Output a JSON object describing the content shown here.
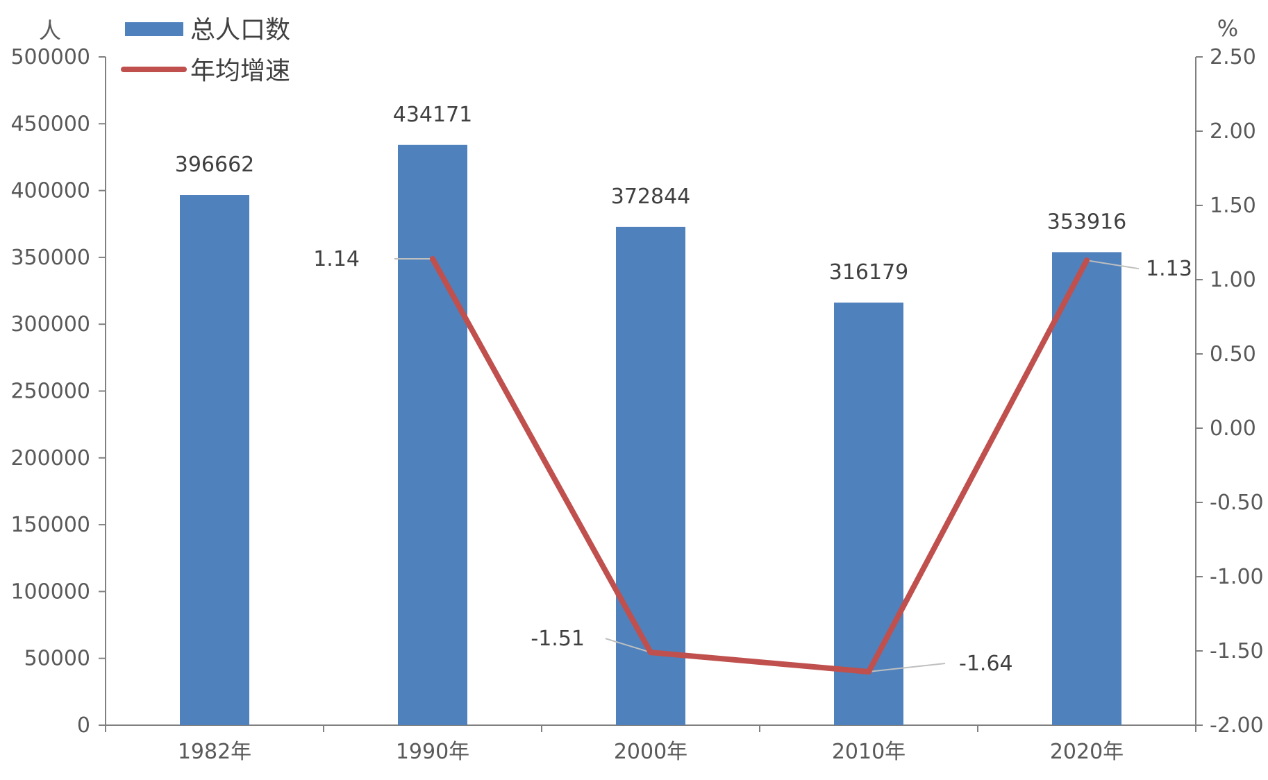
{
  "chart_data": {
    "type": "bar",
    "categories": [
      "1982年",
      "1990年",
      "2000年",
      "2010年",
      "2020年"
    ],
    "series": [
      {
        "name": "总人口数",
        "type": "bar",
        "axis": "left",
        "values": [
          396662,
          434171,
          372844,
          316179,
          353916
        ],
        "labels": [
          "396662",
          "434171",
          "372844",
          "316179",
          "353916"
        ],
        "color": "#4F81BD"
      },
      {
        "name": "年均增速",
        "type": "line",
        "axis": "right",
        "values": [
          null,
          1.14,
          -1.51,
          -1.64,
          1.13
        ],
        "labels": [
          "",
          "1.14",
          "-1.51",
          "-1.64",
          "1.13"
        ],
        "color": "#C0504D"
      }
    ],
    "y_left": {
      "unit": "人",
      "min": 0,
      "max": 500000,
      "ticks": [
        0,
        50000,
        100000,
        150000,
        200000,
        250000,
        300000,
        350000,
        400000,
        450000,
        500000
      ],
      "tick_labels": [
        "0",
        "50000",
        "100000",
        "150000",
        "200000",
        "250000",
        "300000",
        "350000",
        "400000",
        "450000",
        "500000"
      ]
    },
    "y_right": {
      "unit": "%",
      "min": -2.0,
      "max": 2.5,
      "ticks": [
        -2.0,
        -1.5,
        -1.0,
        -0.5,
        0.0,
        0.5,
        1.0,
        1.5,
        2.0,
        2.5
      ],
      "tick_labels": [
        "-2.00",
        "-1.50",
        "-1.00",
        "-0.50",
        "0.00",
        "0.50",
        "1.00",
        "1.50",
        "2.00",
        "2.50"
      ]
    },
    "legend": {
      "position": "top-left",
      "entries": [
        "总人口数",
        "年均增速"
      ]
    },
    "grid": false
  }
}
